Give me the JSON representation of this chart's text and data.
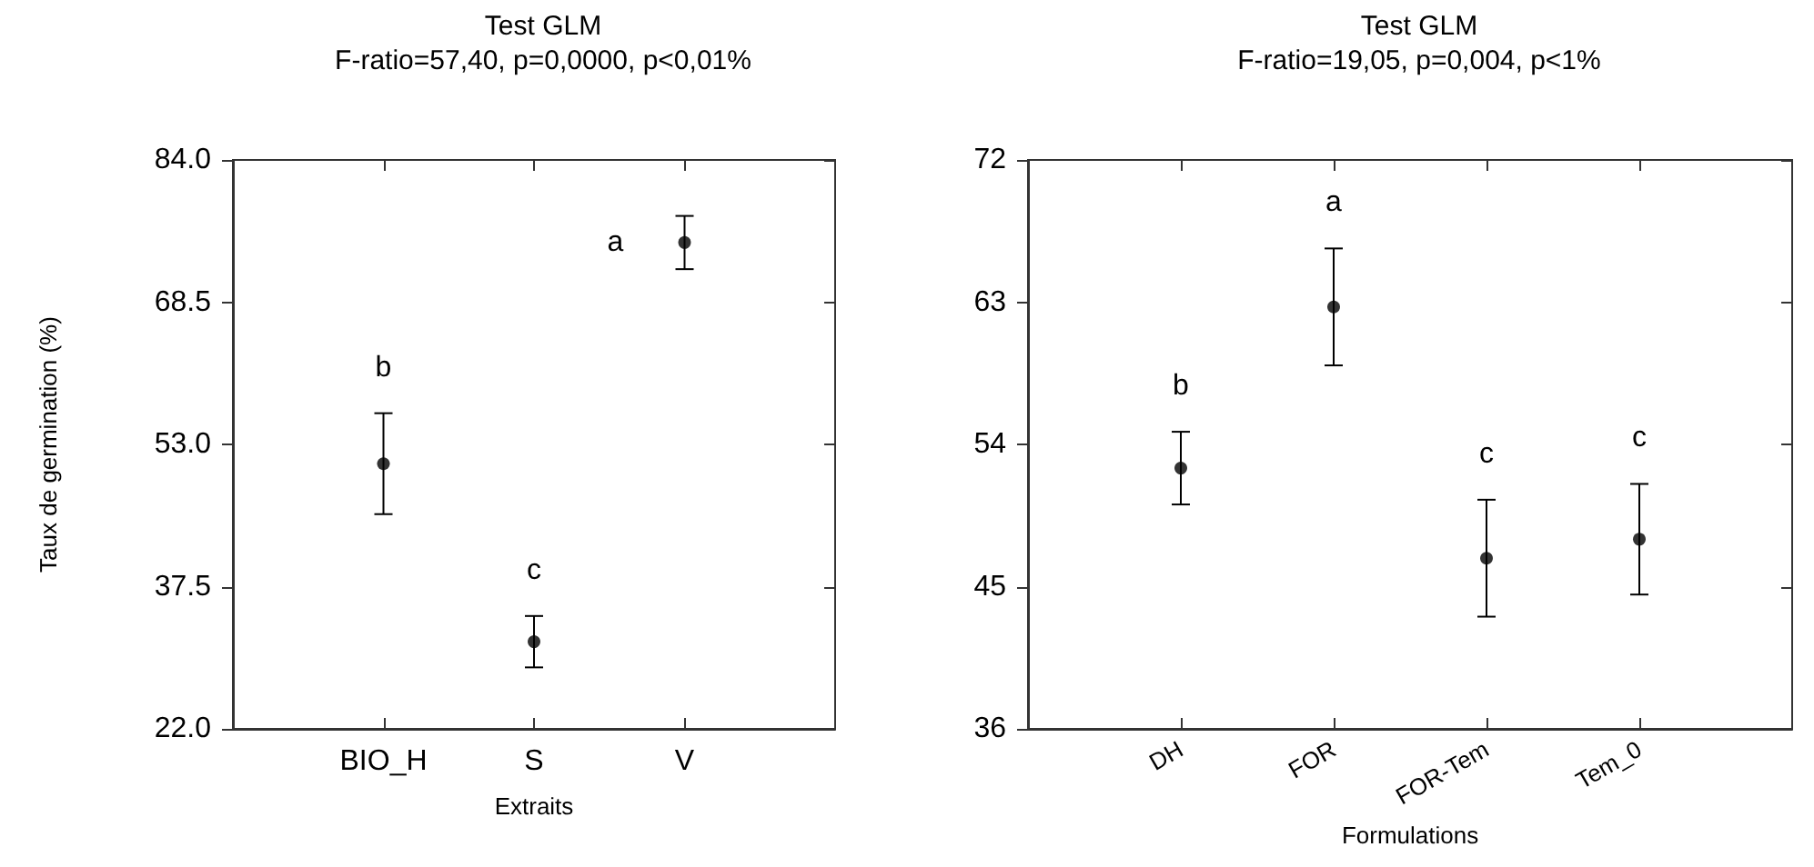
{
  "chart_data": [
    {
      "type": "scatter",
      "title": "Test GLM",
      "subtitle": "F-ratio=57,40, p=0,0000, p<0,01%",
      "xlabel": "Extraits",
      "ylabel": "Taux de germination (%)",
      "categories": [
        null,
        "BIO_H",
        "S",
        "V",
        null
      ],
      "series": [
        {
          "color": "#000000",
          "values": [
            null,
            50.9,
            31.5,
            75.0,
            null
          ],
          "errors": [
            null,
            5.5,
            2.8,
            2.9,
            null
          ]
        }
      ],
      "ylim": [
        22,
        84
      ],
      "yticks": [
        {
          "value": 22,
          "label": "22.0"
        },
        37.5,
        {
          "value": 53,
          "label": "53.0"
        },
        68.5,
        {
          "value": 84,
          "label": "84.0"
        }
      ],
      "grid": false,
      "marker": "circle",
      "annotations": [
        "b",
        "c",
        "a"
      ]
    },
    {
      "type": "scatter",
      "title": "Test GLM",
      "subtitle": "F-ratio=19,05, p=0,004, p<1%",
      "xlabel": "Formulations",
      "categories": [
        null,
        "DH",
        "FOR",
        "FOR-Tem",
        "Tem_0",
        null
      ],
      "series": [
        {
          "color": "#000000",
          "values": [
            null,
            52.5,
            62.7,
            46.8,
            48.0,
            null
          ],
          "errors": [
            null,
            2.3,
            3.7,
            3.7,
            3.5,
            null
          ]
        }
      ],
      "ylim": [
        36,
        72
      ],
      "yticks": [
        36,
        45,
        54,
        63,
        72
      ],
      "grid": false,
      "marker": "circle",
      "annotations": [
        "b",
        "a",
        "c",
        "c"
      ]
    }
  ]
}
